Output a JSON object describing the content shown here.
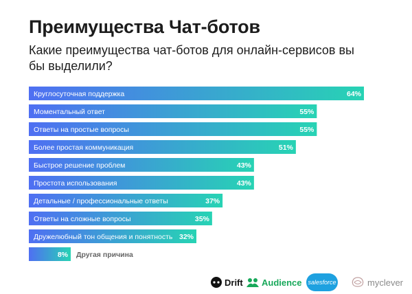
{
  "header": {
    "title": "Преимущества Чат-ботов",
    "subtitle": "Какие преимущества чат-ботов для онлайн-сервисов вы бы выделили?"
  },
  "chart_data": {
    "type": "bar",
    "orientation": "horizontal",
    "categories": [
      "Круглосуточная поддержка",
      "Моментальный ответ",
      "Ответы на простые вопросы",
      "Более простая коммуникация",
      "Быстрое решение проблем",
      "Простота использования",
      "Детальные / профессиональные ответы",
      "Ответы на сложные вопросы",
      "Дружелюбный тон общения и понятность",
      "Другая причина"
    ],
    "values": [
      64,
      55,
      55,
      51,
      43,
      43,
      37,
      35,
      32,
      8
    ],
    "value_labels": [
      "64%",
      "55%",
      "55%",
      "51%",
      "43%",
      "43%",
      "37%",
      "35%",
      "32%",
      "8%"
    ],
    "title": "Преимущества Чат-ботов",
    "xlim": [
      0,
      64
    ],
    "grid": false,
    "legend": "none",
    "colors": {
      "gradient_start": "#4f6ff2",
      "gradient_end": "#27d3b4",
      "inside_label": "#ffffff",
      "outside_label": "#666666"
    }
  },
  "footer": {
    "logos": [
      {
        "text": "Drift",
        "icon": "drift-logo-icon"
      },
      {
        "text": "Audience",
        "icon": "audience-logo-icon"
      },
      {
        "text": "salesforce",
        "icon": "salesforce-cloud-icon"
      },
      {
        "text": "myclever",
        "icon": "myclever-logo-icon"
      }
    ],
    "colors": {
      "audience": "#18a85a",
      "salesforce": "#1ea1e0",
      "myclever": "#8a8a8a"
    }
  }
}
